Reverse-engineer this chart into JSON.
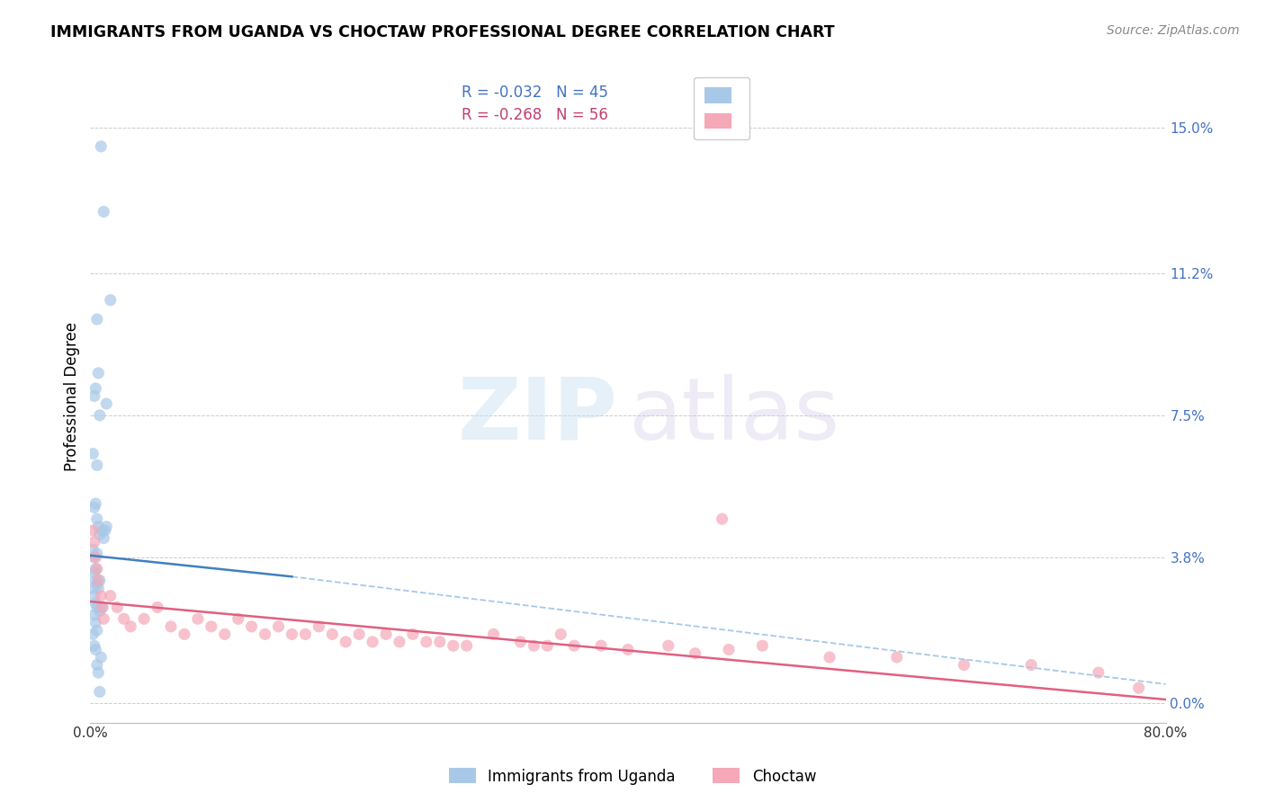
{
  "title": "IMMIGRANTS FROM UGANDA VS CHOCTAW PROFESSIONAL DEGREE CORRELATION CHART",
  "source": "Source: ZipAtlas.com",
  "ylabel": "Professional Degree",
  "ytick_values": [
    0.0,
    3.8,
    7.5,
    11.2,
    15.0
  ],
  "xlim": [
    0.0,
    80.0
  ],
  "ylim": [
    -0.5,
    16.5
  ],
  "legend_label1": "Immigrants from Uganda",
  "legend_label2": "Choctaw",
  "color_blue": "#a8c8e8",
  "color_pink": "#f4a8b8",
  "color_trendline_blue": "#4080c0",
  "color_trendline_pink": "#e06080",
  "color_trendline_dashed_blue": "#a8c8e8",
  "blue_scatter_x": [
    0.8,
    1.0,
    0.5,
    1.5,
    0.4,
    0.6,
    0.3,
    0.7,
    1.2,
    0.2,
    0.5,
    0.3,
    0.4,
    0.5,
    0.6,
    0.7,
    0.9,
    1.0,
    1.1,
    1.2,
    0.2,
    0.3,
    0.4,
    0.5,
    0.3,
    0.4,
    0.5,
    0.6,
    0.7,
    0.2,
    0.3,
    0.4,
    0.5,
    0.7,
    0.9,
    0.3,
    0.4,
    0.5,
    0.2,
    0.3,
    0.4,
    0.8,
    0.5,
    0.6,
    0.7
  ],
  "blue_scatter_y": [
    14.5,
    12.8,
    10.0,
    10.5,
    8.2,
    8.6,
    8.0,
    7.5,
    7.8,
    6.5,
    6.2,
    5.1,
    5.2,
    4.8,
    4.6,
    4.4,
    4.5,
    4.3,
    4.5,
    4.6,
    4.0,
    3.8,
    3.5,
    3.9,
    3.4,
    3.2,
    3.1,
    3.0,
    3.2,
    3.0,
    2.8,
    2.6,
    2.5,
    2.4,
    2.5,
    2.3,
    2.1,
    1.9,
    1.8,
    1.5,
    1.4,
    1.2,
    1.0,
    0.8,
    0.3
  ],
  "pink_scatter_x": [
    0.4,
    0.5,
    0.6,
    0.8,
    0.9,
    1.0,
    1.5,
    2.0,
    2.5,
    3.0,
    4.0,
    5.0,
    6.0,
    7.0,
    8.0,
    9.0,
    10.0,
    11.0,
    12.0,
    13.0,
    14.0,
    15.0,
    16.0,
    17.0,
    18.0,
    19.0,
    20.0,
    21.0,
    22.0,
    23.0,
    24.0,
    25.0,
    26.0,
    27.0,
    28.0,
    30.0,
    32.0,
    33.0,
    34.0,
    35.0,
    36.0,
    38.0,
    40.0,
    43.0,
    45.0,
    47.0,
    50.0,
    55.0,
    60.0,
    65.0,
    70.0,
    75.0,
    78.0,
    0.2,
    0.3,
    47.5
  ],
  "pink_scatter_y": [
    3.8,
    3.5,
    3.2,
    2.8,
    2.5,
    2.2,
    2.8,
    2.5,
    2.2,
    2.0,
    2.2,
    2.5,
    2.0,
    1.8,
    2.2,
    2.0,
    1.8,
    2.2,
    2.0,
    1.8,
    2.0,
    1.8,
    1.8,
    2.0,
    1.8,
    1.6,
    1.8,
    1.6,
    1.8,
    1.6,
    1.8,
    1.6,
    1.6,
    1.5,
    1.5,
    1.8,
    1.6,
    1.5,
    1.5,
    1.8,
    1.5,
    1.5,
    1.4,
    1.5,
    1.3,
    4.8,
    1.5,
    1.2,
    1.2,
    1.0,
    1.0,
    0.8,
    0.4,
    4.5,
    4.2,
    1.4
  ]
}
